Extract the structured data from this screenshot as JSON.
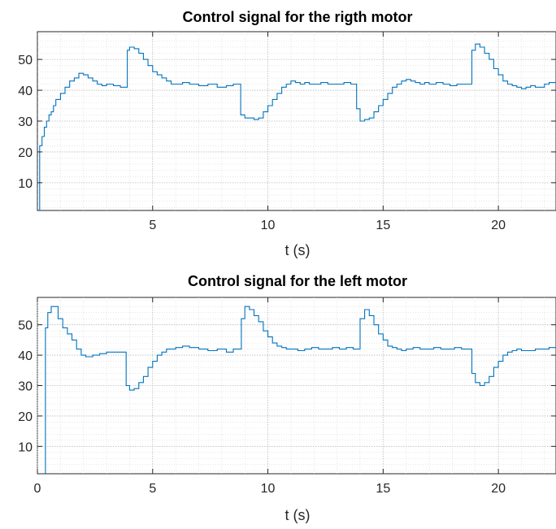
{
  "chart_data": [
    {
      "type": "line",
      "step": true,
      "title": "Control signal for the rigth motor",
      "xlabel": "t (s)",
      "ylabel": "",
      "xlim": [
        0,
        22.5
      ],
      "ylim": [
        1,
        59
      ],
      "xticks": [
        5,
        10,
        15,
        20
      ],
      "xticklabels": [
        "5",
        "10",
        "15",
        "20"
      ],
      "yticks": [
        10,
        20,
        30,
        40,
        50
      ],
      "yticklabels": [
        "10",
        "20",
        "30",
        "40",
        "50"
      ],
      "grid": true,
      "minor_grid": true,
      "color": "#0072bd",
      "series": [
        {
          "x": [
            0,
            0.1,
            0.2,
            0.3,
            0.4,
            0.5,
            0.6,
            0.7,
            0.8,
            1.0,
            1.2,
            1.4,
            1.6,
            1.8,
            2.0,
            2.2,
            2.4,
            2.6,
            2.8,
            3.0,
            3.3,
            3.6,
            3.85,
            3.9,
            4.0,
            4.2,
            4.4,
            4.6,
            4.8,
            5.0,
            5.2,
            5.4,
            5.6,
            5.8,
            6.0,
            6.3,
            6.6,
            7.0,
            7.4,
            7.8,
            8.2,
            8.5,
            8.8,
            8.82,
            9.0,
            9.4,
            9.6,
            9.8,
            10.0,
            10.2,
            10.4,
            10.6,
            10.8,
            11.0,
            11.2,
            11.4,
            11.6,
            11.8,
            12.0,
            12.3,
            12.6,
            12.9,
            13.3,
            13.6,
            13.8,
            13.85,
            14.0,
            14.2,
            14.4,
            14.6,
            14.8,
            15.0,
            15.2,
            15.4,
            15.6,
            15.8,
            16.0,
            16.2,
            16.4,
            16.6,
            16.8,
            17.0,
            17.3,
            17.6,
            17.9,
            18.2,
            18.5,
            18.8,
            18.85,
            19.0,
            19.2,
            19.4,
            19.6,
            19.8,
            20.0,
            20.2,
            20.4,
            20.6,
            20.8,
            21.0,
            21.2,
            21.4,
            21.6,
            21.8,
            22.0,
            22.2,
            22.5
          ],
          "y": [
            0,
            22,
            25,
            28,
            30,
            32,
            33,
            35,
            37,
            39,
            41,
            43,
            44,
            45.5,
            45,
            44,
            43,
            42,
            41.5,
            42,
            41.5,
            41,
            41,
            53,
            54,
            53.5,
            52,
            50,
            48,
            46,
            45,
            44,
            43,
            42,
            42,
            42.5,
            42,
            41.5,
            42,
            41,
            41.5,
            42,
            42,
            32,
            31,
            30.5,
            31,
            33,
            35,
            37,
            39,
            41,
            42,
            43,
            42.5,
            42,
            42.5,
            42,
            42,
            42.5,
            42,
            42,
            42.5,
            42,
            42,
            34,
            30,
            30.5,
            31,
            33,
            35,
            37,
            39,
            41,
            42,
            43,
            43.5,
            43,
            42.5,
            42,
            42.5,
            42,
            42.5,
            42,
            41.5,
            42,
            42,
            42,
            53,
            55,
            54,
            52,
            50,
            47,
            45,
            43,
            42,
            41.5,
            41,
            40.5,
            41,
            41.5,
            41,
            41,
            42,
            42.5,
            42.5
          ]
        }
      ]
    },
    {
      "type": "line",
      "step": true,
      "title": "Control signal for the left motor",
      "xlabel": "t (s)",
      "ylabel": "",
      "xlim": [
        0,
        22.5
      ],
      "ylim": [
        1,
        59
      ],
      "xticks": [
        0,
        5,
        10,
        15,
        20
      ],
      "xticklabels": [
        "0",
        "5",
        "10",
        "15",
        "20"
      ],
      "yticks": [
        10,
        20,
        30,
        40,
        50
      ],
      "yticklabels": [
        "10",
        "20",
        "30",
        "40",
        "50"
      ],
      "grid": true,
      "minor_grid": true,
      "color": "#0072bd",
      "series": [
        {
          "x": [
            0,
            0.3,
            0.35,
            0.45,
            0.6,
            0.9,
            1.1,
            1.3,
            1.5,
            1.7,
            1.9,
            2.1,
            2.4,
            2.7,
            3.0,
            3.3,
            3.6,
            3.8,
            3.85,
            4.0,
            4.2,
            4.4,
            4.6,
            4.8,
            5.0,
            5.2,
            5.4,
            5.6,
            5.8,
            6.0,
            6.3,
            6.6,
            7.0,
            7.4,
            7.8,
            8.2,
            8.5,
            8.8,
            8.85,
            9.0,
            9.2,
            9.4,
            9.6,
            9.8,
            10.0,
            10.2,
            10.4,
            10.6,
            10.8,
            11.0,
            11.3,
            11.6,
            11.9,
            12.2,
            12.5,
            12.8,
            13.1,
            13.4,
            13.7,
            13.85,
            14.0,
            14.2,
            14.4,
            14.6,
            14.8,
            15.0,
            15.2,
            15.4,
            15.6,
            15.8,
            16.0,
            16.3,
            16.6,
            16.9,
            17.2,
            17.5,
            17.8,
            18.1,
            18.4,
            18.7,
            18.85,
            19.0,
            19.2,
            19.4,
            19.6,
            19.8,
            20.0,
            20.2,
            20.4,
            20.6,
            20.8,
            21.0,
            21.3,
            21.6,
            21.9,
            22.2,
            22.5
          ],
          "y": [
            0,
            0,
            49,
            54,
            56,
            52,
            49,
            47,
            45,
            42,
            40,
            39.5,
            40,
            40.5,
            41,
            41,
            41,
            41,
            30,
            28.5,
            29,
            31,
            33,
            36,
            38,
            40,
            41,
            42,
            42,
            42.5,
            43,
            42.5,
            42,
            41.5,
            42,
            41,
            42,
            42,
            52,
            56,
            55,
            53,
            51,
            48,
            46,
            44,
            43,
            42.5,
            42,
            42,
            41.5,
            42,
            42.5,
            42,
            42,
            42.5,
            42,
            42.5,
            42,
            42,
            52,
            55,
            53,
            50,
            47,
            45,
            43,
            42.5,
            42,
            41.5,
            42,
            42.5,
            42,
            42,
            42.5,
            42,
            42,
            42.5,
            42,
            42,
            34,
            31,
            30,
            31,
            33,
            36,
            38,
            40,
            41,
            41.5,
            42,
            41.5,
            41.5,
            42,
            42,
            42.5,
            42.5
          ]
        }
      ]
    }
  ]
}
